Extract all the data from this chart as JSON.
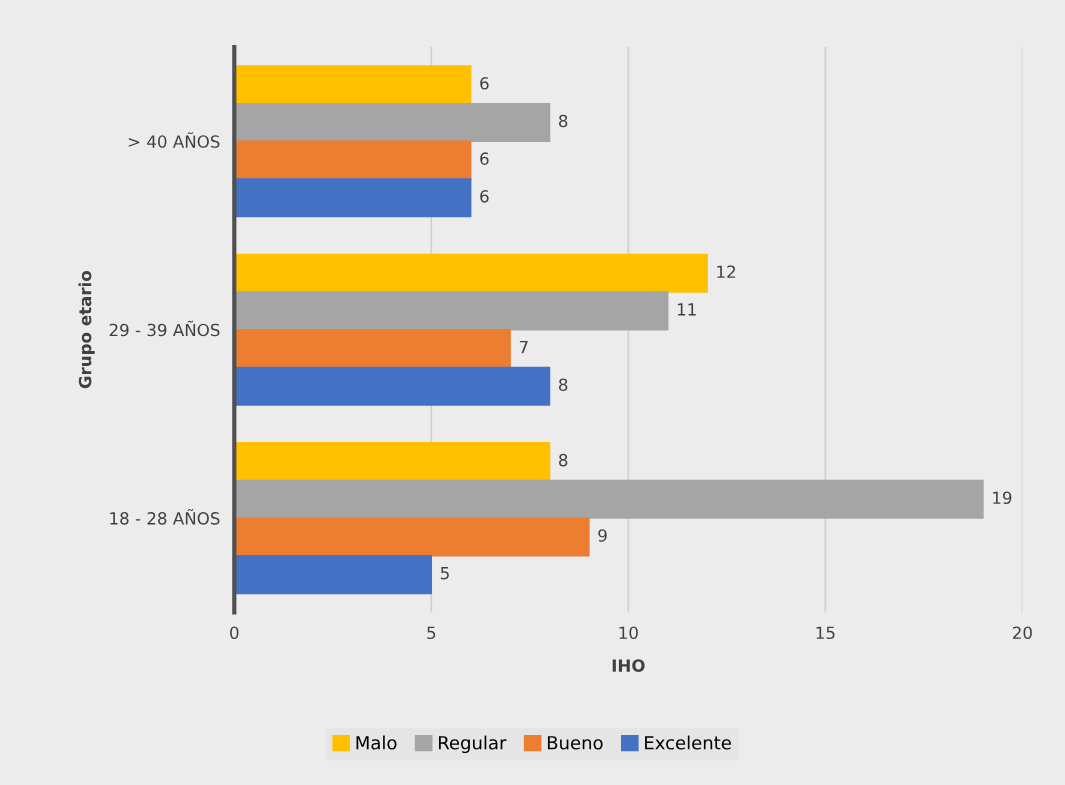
{
  "chart_data": {
    "type": "bar",
    "orientation": "horizontal",
    "xlabel": "IHO",
    "ylabel": "Grupo etario",
    "categories": [
      "> 40 AÑOS",
      "29 - 39 AÑOS",
      "18 - 28 AÑOS"
    ],
    "series": [
      {
        "name": "Malo",
        "color": "#ffc000",
        "values": [
          6,
          12,
          8
        ]
      },
      {
        "name": "Regular",
        "color": "#a5a5a5",
        "values": [
          8,
          11,
          19
        ]
      },
      {
        "name": "Bueno",
        "color": "#ed7d31",
        "values": [
          6,
          7,
          9
        ]
      },
      {
        "name": "Excelente",
        "color": "#4472c4",
        "values": [
          6,
          8,
          5
        ]
      }
    ],
    "xlim": [
      0,
      20
    ],
    "xticks": [
      0,
      5,
      10,
      15,
      20
    ],
    "grid": "x",
    "legend": "bottom",
    "data_labels": true
  }
}
